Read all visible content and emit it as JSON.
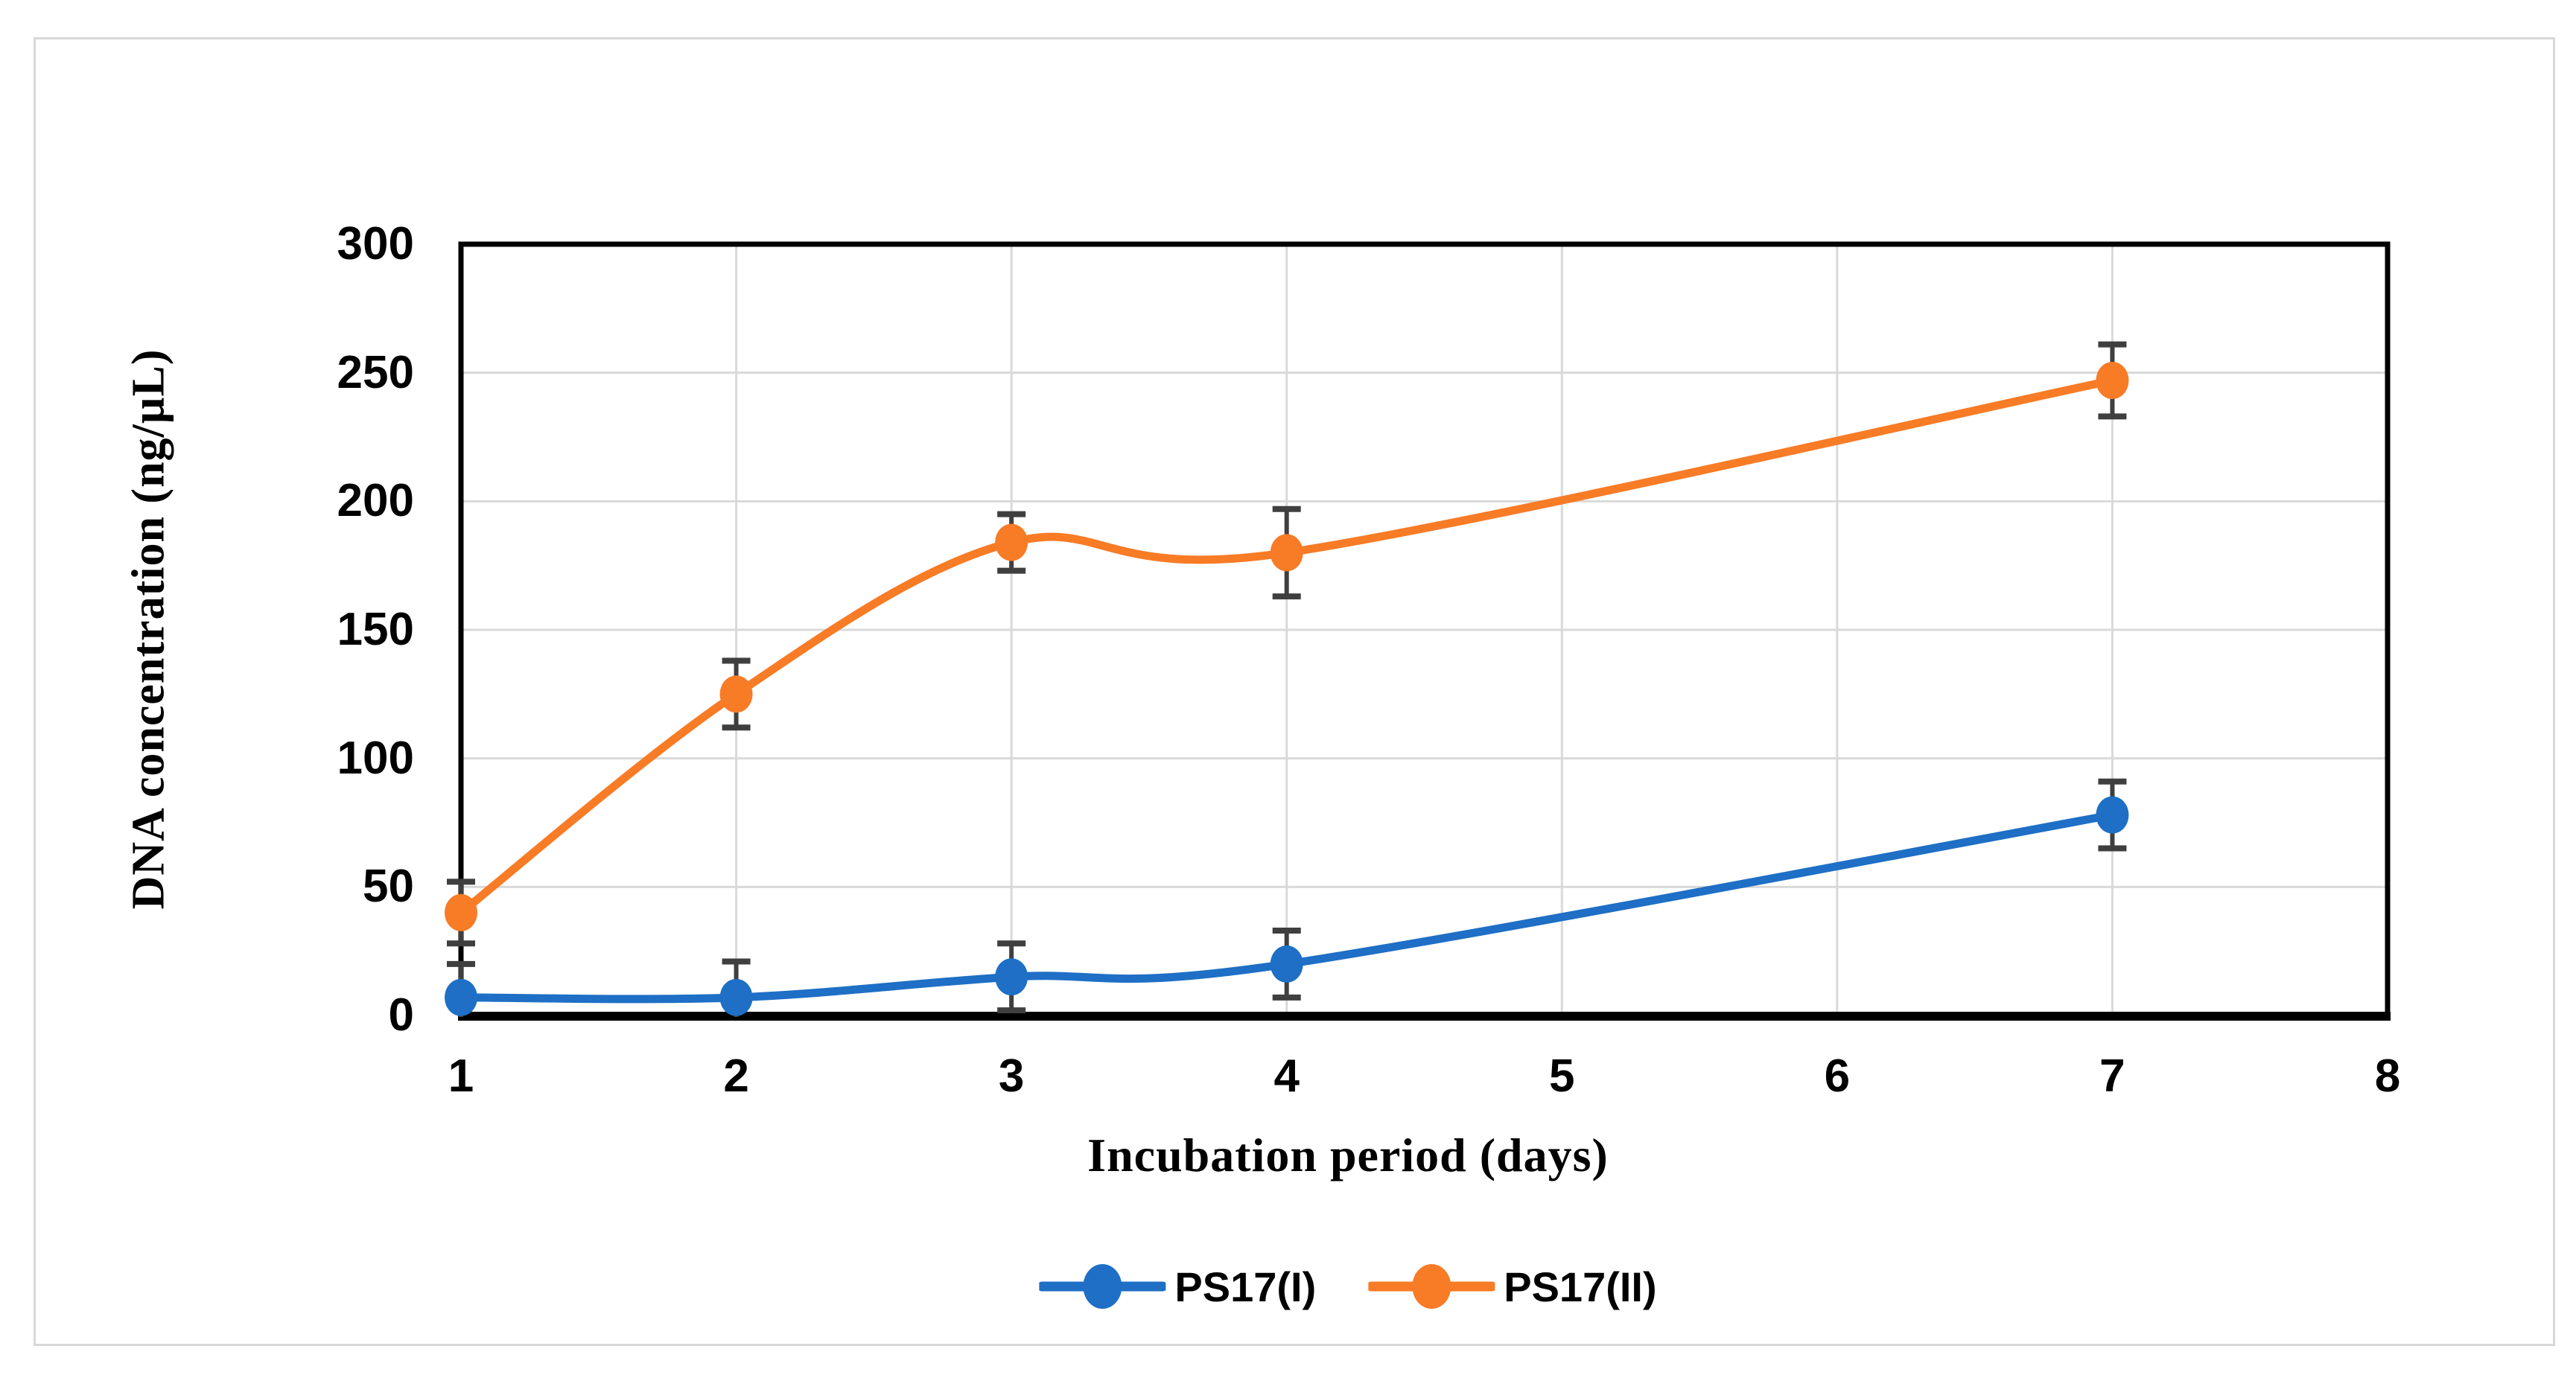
{
  "chart_data": {
    "type": "line",
    "title": "",
    "xlabel": "Incubation period (days)",
    "ylabel": "DNA concentration (ng/µL)",
    "x": [
      1,
      2,
      3,
      4,
      7
    ],
    "xticks": [
      1,
      2,
      3,
      4,
      5,
      6,
      7,
      8
    ],
    "yticks": [
      0,
      50,
      100,
      150,
      200,
      250,
      300
    ],
    "xlim": [
      1,
      8
    ],
    "ylim": [
      0,
      300
    ],
    "grid": true,
    "smooth_lines": true,
    "legend_position": "bottom",
    "error_bar_color": "#3f3f3f",
    "series": [
      {
        "name": "PS17(I)",
        "color": "#1e6fc5",
        "values": [
          7,
          7,
          15,
          20,
          78
        ],
        "errors": [
          13,
          14,
          13,
          13,
          13
        ]
      },
      {
        "name": "PS17(II)",
        "color": "#f87b26",
        "values": [
          40,
          125,
          184,
          180,
          247
        ],
        "errors": [
          12,
          13,
          11,
          17,
          14
        ]
      }
    ]
  }
}
